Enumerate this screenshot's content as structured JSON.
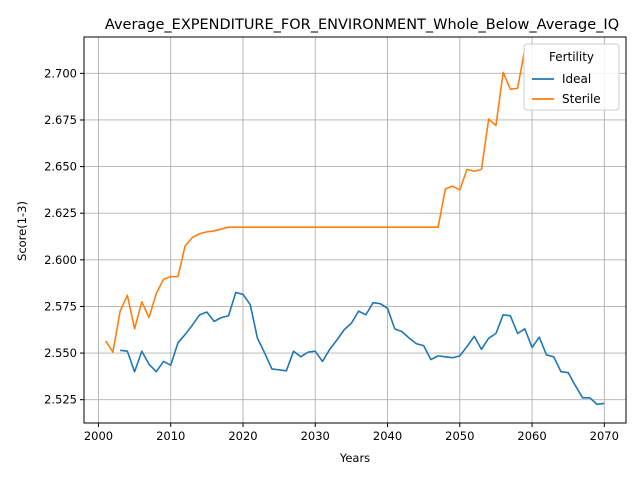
{
  "chart_data": {
    "type": "line",
    "title": "Average_EXPENDITURE_FOR_ENVIRONMENT_Whole_Below_Average_IQ",
    "xlabel": "Years",
    "ylabel": "Score(1-3)",
    "xlim": [
      1998,
      2073
    ],
    "ylim": [
      2.5125,
      2.7195
    ],
    "xticks": [
      2000,
      2010,
      2020,
      2030,
      2040,
      2050,
      2060,
      2070
    ],
    "xtick_labels": [
      "2000",
      "2010",
      "2020",
      "2030",
      "2040",
      "2050",
      "2060",
      "2070"
    ],
    "yticks": [
      2.525,
      2.55,
      2.575,
      2.6,
      2.625,
      2.65,
      2.675,
      2.7
    ],
    "ytick_labels": [
      "2.525",
      "2.550",
      "2.575",
      "2.600",
      "2.625",
      "2.650",
      "2.675",
      "2.700"
    ],
    "grid": true,
    "legend": {
      "title": "Fertility",
      "placement": "top-right"
    },
    "series": [
      {
        "name": "Ideal",
        "color": "#1f77b4",
        "x": [
          2003,
          2004,
          2005,
          2006,
          2007,
          2008,
          2009,
          2010,
          2011,
          2012,
          2013,
          2014,
          2015,
          2016,
          2017,
          2018,
          2019,
          2020,
          2021,
          2022,
          2023,
          2024,
          2025,
          2026,
          2027,
          2028,
          2029,
          2030,
          2031,
          2032,
          2033,
          2034,
          2035,
          2036,
          2037,
          2038,
          2039,
          2040,
          2041,
          2042,
          2043,
          2044,
          2045,
          2046,
          2047,
          2048,
          2049,
          2050,
          2051,
          2052,
          2053,
          2054,
          2055,
          2056,
          2057,
          2058,
          2059,
          2060,
          2061,
          2062,
          2063,
          2064,
          2065,
          2066,
          2067,
          2068,
          2069,
          2070
        ],
        "values": [
          2.5515,
          2.551,
          2.54,
          2.551,
          2.544,
          2.54,
          2.5455,
          2.5435,
          2.5555,
          2.56,
          2.565,
          2.5705,
          2.572,
          2.567,
          2.569,
          2.57,
          2.5825,
          2.5815,
          2.576,
          2.558,
          2.55,
          2.5415,
          2.541,
          2.5405,
          2.551,
          2.548,
          2.5505,
          2.551,
          2.5455,
          2.552,
          2.557,
          2.5625,
          2.566,
          2.5725,
          2.5705,
          2.577,
          2.5765,
          2.574,
          2.563,
          2.5615,
          2.558,
          2.555,
          2.554,
          2.5465,
          2.5485,
          2.548,
          2.5475,
          2.5485,
          2.5535,
          2.559,
          2.552,
          2.558,
          2.5605,
          2.5705,
          2.57,
          2.5605,
          2.563,
          2.553,
          2.5585,
          2.549,
          2.548,
          2.54,
          2.5395,
          2.5325,
          2.526,
          2.526,
          2.5225,
          2.523
        ]
      },
      {
        "name": "Sterile",
        "color": "#ff7f0e",
        "x": [
          2001,
          2002,
          2003,
          2004,
          2005,
          2006,
          2007,
          2008,
          2009,
          2010,
          2011,
          2012,
          2013,
          2014,
          2015,
          2016,
          2017,
          2018,
          2019,
          2020,
          2021,
          2022,
          2023,
          2024,
          2025,
          2026,
          2027,
          2028,
          2029,
          2030,
          2031,
          2032,
          2033,
          2034,
          2035,
          2036,
          2037,
          2038,
          2039,
          2040,
          2041,
          2042,
          2043,
          2044,
          2045,
          2046,
          2047,
          2048,
          2049,
          2050,
          2051,
          2052,
          2053,
          2054,
          2055,
          2056,
          2057,
          2058,
          2059
        ],
        "values": [
          2.5565,
          2.5505,
          2.5725,
          2.581,
          2.563,
          2.5775,
          2.569,
          2.582,
          2.5895,
          2.591,
          2.591,
          2.6075,
          2.612,
          2.614,
          2.615,
          2.6155,
          2.6165,
          2.6175,
          2.6175,
          2.6175,
          2.6175,
          2.6175,
          2.6175,
          2.6175,
          2.6175,
          2.6175,
          2.6175,
          2.6175,
          2.6175,
          2.6175,
          2.6175,
          2.6175,
          2.6175,
          2.6175,
          2.6175,
          2.6175,
          2.6175,
          2.6175,
          2.6175,
          2.6175,
          2.6175,
          2.6175,
          2.6175,
          2.6175,
          2.6175,
          2.6175,
          2.6175,
          2.638,
          2.6395,
          2.6375,
          2.6485,
          2.6475,
          2.6485,
          2.6755,
          2.672,
          2.7005,
          2.6915,
          2.692,
          2.713
        ]
      }
    ]
  }
}
